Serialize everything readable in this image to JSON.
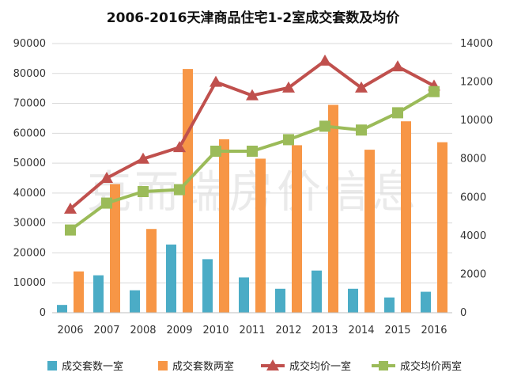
{
  "watermark": "克而瑞房价信息",
  "chart_data": {
    "title": "2006-2016天津商品住宅1-2室成交套数及均价",
    "categories": [
      "2006",
      "2007",
      "2008",
      "2009",
      "2010",
      "2011",
      "2012",
      "2013",
      "2014",
      "2015",
      "2016"
    ],
    "y_left": {
      "lim": [
        0,
        90000
      ],
      "ticks": [
        "0",
        "10000",
        "20000",
        "30000",
        "40000",
        "50000",
        "60000",
        "70000",
        "80000",
        "90000"
      ]
    },
    "y_right": {
      "lim": [
        0,
        14000
      ],
      "ticks": [
        "0",
        "2000",
        "4000",
        "6000",
        "8000",
        "10000",
        "12000",
        "14000"
      ]
    },
    "grid": true,
    "legend_position": "bottom",
    "series": [
      {
        "name": "成交套数一室",
        "type": "bar",
        "axis": "left",
        "color": "#4BACC6",
        "values": [
          2600,
          12500,
          7500,
          22800,
          17900,
          11800,
          8000,
          14100,
          8000,
          5100,
          7000
        ]
      },
      {
        "name": "成交套数两室",
        "type": "bar",
        "axis": "left",
        "color": "#F79646",
        "values": [
          13800,
          43000,
          28000,
          81500,
          58000,
          51500,
          56000,
          69500,
          54500,
          64000,
          57000
        ]
      },
      {
        "name": "成交均价一室",
        "type": "line",
        "axis": "right",
        "color": "#C0504D",
        "marker": "triangle",
        "values": [
          5400,
          7000,
          8000,
          8600,
          12000,
          11300,
          11700,
          13100,
          11700,
          12800,
          11800
        ]
      },
      {
        "name": "成交均价两室",
        "type": "line",
        "axis": "right",
        "color": "#9BBB59",
        "marker": "square",
        "values": [
          4300,
          5700,
          6300,
          6400,
          8400,
          8400,
          9000,
          9700,
          9500,
          10400,
          11500
        ]
      }
    ]
  }
}
